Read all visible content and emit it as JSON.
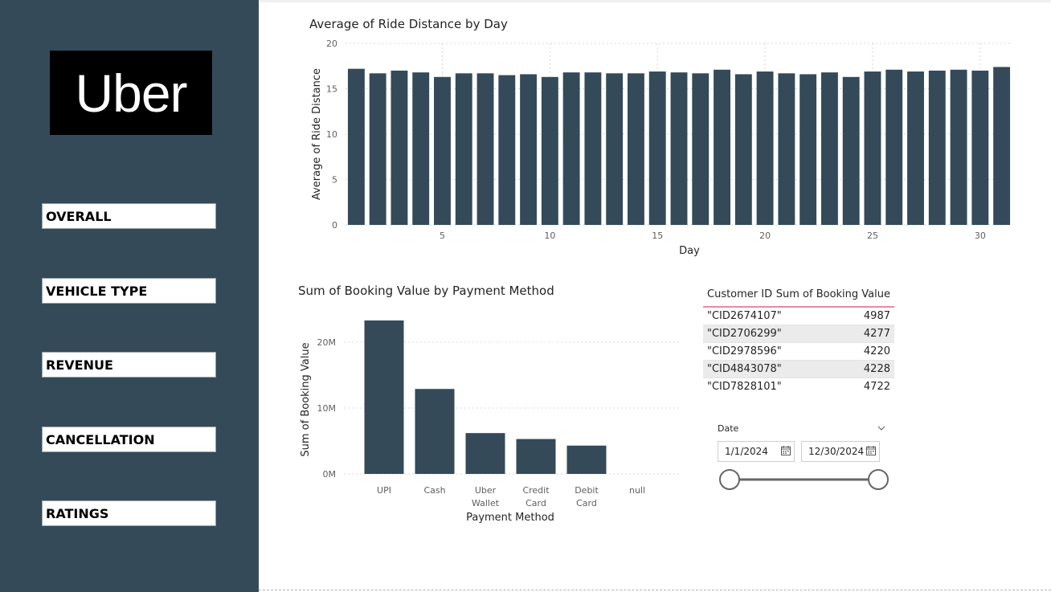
{
  "logo": {
    "text": "Uber"
  },
  "nav": {
    "items": [
      "OVERALL",
      "VEHICLE TYPE",
      "REVENUE",
      "CANCELLATION",
      "RATINGS"
    ]
  },
  "colors": {
    "sidebar": "#344a59",
    "bar": "#344a59",
    "table_header_line": "#e58aa8"
  },
  "table": {
    "headers": [
      "Customer ID",
      "Sum of Booking Value"
    ],
    "rows": [
      [
        "\"CID2674107\"",
        "4987"
      ],
      [
        "\"CID2706299\"",
        "4277"
      ],
      [
        "\"CID2978596\"",
        "4220"
      ],
      [
        "\"CID4843078\"",
        "4228"
      ],
      [
        "\"CID7828101\"",
        "4722"
      ]
    ]
  },
  "slicer": {
    "label": "Date",
    "start": "1/1/2024",
    "end": "12/30/2024",
    "icons": [
      "calendar-icon",
      "chevron-down-icon"
    ]
  },
  "chart_data": [
    {
      "type": "bar",
      "title": "Average of Ride Distance by Day",
      "xlabel": "Day",
      "ylabel": "Average of Ride Distance",
      "ylim": [
        0,
        20
      ],
      "yticks": [
        0,
        5,
        10,
        15,
        20
      ],
      "xticks": [
        5,
        10,
        15,
        20,
        25,
        30
      ],
      "grid": true,
      "categories": [
        1,
        2,
        3,
        4,
        5,
        6,
        7,
        8,
        9,
        10,
        11,
        12,
        13,
        14,
        15,
        16,
        17,
        18,
        19,
        20,
        21,
        22,
        23,
        24,
        25,
        26,
        27,
        28,
        29,
        30,
        31
      ],
      "values": [
        17.2,
        16.7,
        17.0,
        16.8,
        16.3,
        16.7,
        16.7,
        16.5,
        16.6,
        16.3,
        16.8,
        16.8,
        16.7,
        16.7,
        16.9,
        16.8,
        16.7,
        17.1,
        16.6,
        16.9,
        16.7,
        16.6,
        16.8,
        16.3,
        16.9,
        17.1,
        16.9,
        17.0,
        17.1,
        17.0,
        17.4
      ]
    },
    {
      "type": "bar",
      "title": "Sum of Booking Value by Payment Method",
      "xlabel": "Payment Method",
      "ylabel": "Sum of Booking Value",
      "ylim": [
        0,
        25000000
      ],
      "yticks": [
        0,
        10000000,
        20000000
      ],
      "ytick_labels": [
        "0M",
        "10M",
        "20M"
      ],
      "grid": true,
      "categories": [
        "UPI",
        "Cash",
        "Uber Wallet",
        "Credit Card",
        "Debit Card",
        "null"
      ],
      "category_lines": [
        [
          "UPI"
        ],
        [
          "Cash"
        ],
        [
          "Uber",
          "Wallet"
        ],
        [
          "Credit",
          "Card"
        ],
        [
          "Debit",
          "Card"
        ],
        [
          "null"
        ]
      ],
      "values": [
        23300000,
        12900000,
        6200000,
        5300000,
        4300000,
        0
      ]
    }
  ]
}
